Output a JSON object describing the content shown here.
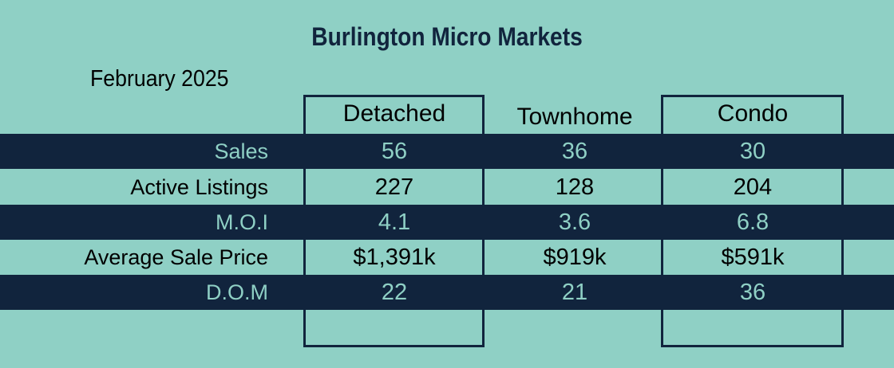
{
  "title": "Burlington Micro Markets",
  "period": "February 2025",
  "columns": [
    "Detached",
    "Townhome",
    "Condo"
  ],
  "rows": [
    {
      "label": "Sales",
      "values": [
        "56",
        "36",
        "30"
      ]
    },
    {
      "label": "Active Listings",
      "values": [
        "227",
        "128",
        "204"
      ]
    },
    {
      "label": "M.O.I",
      "values": [
        "4.1",
        "3.6",
        "6.8"
      ]
    },
    {
      "label": "Average Sale Price",
      "values": [
        "$1,391k",
        "$919k",
        "$591k"
      ]
    },
    {
      "label": "D.O.M",
      "values": [
        "22",
        "21",
        "36"
      ]
    }
  ],
  "colors": {
    "background": "#8fd0c5",
    "band": "#11243d"
  }
}
